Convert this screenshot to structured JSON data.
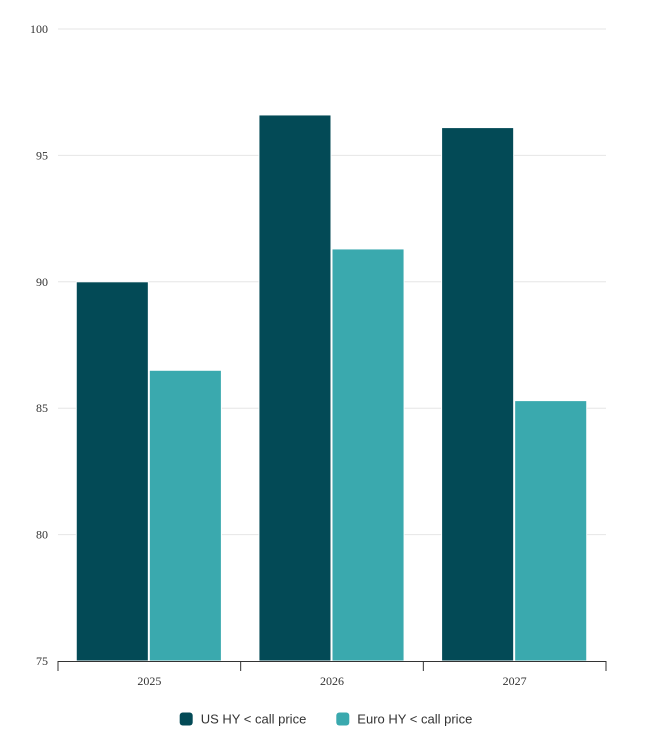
{
  "chart_data": {
    "type": "bar",
    "categories": [
      "2025",
      "2026",
      "2027"
    ],
    "series": [
      {
        "name": "US HY < call price",
        "color": "#034a56",
        "values": [
          90.0,
          96.6,
          96.1
        ]
      },
      {
        "name": "Euro HY < call price",
        "color": "#3aa9ae",
        "values": [
          86.5,
          91.3,
          85.3
        ]
      }
    ],
    "ylim": [
      75,
      100
    ],
    "yticks": [
      "75",
      "80",
      "85",
      "90",
      "95",
      "100"
    ],
    "grid": true,
    "legend": "bottom-center",
    "title": "",
    "xlabel": "",
    "ylabel": ""
  }
}
